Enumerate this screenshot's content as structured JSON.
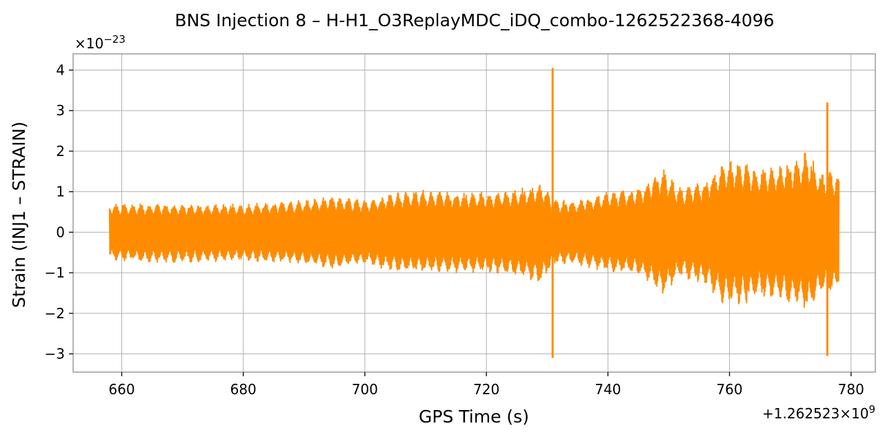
{
  "chart_data": {
    "type": "line",
    "title": "BNS Injection 8 – H-H1_O3ReplayMDC_iDQ_combo-1262522368-4096",
    "xlabel": "GPS Time (s)",
    "ylabel": "Strain (INJ1 – STRAIN)",
    "x_offset_label": "+1.262523×10^9",
    "y_scale_label": "×10^−23",
    "xlim": [
      652,
      784
    ],
    "ylim": [
      -3.45,
      4.4
    ],
    "x_ticks": [
      660,
      680,
      700,
      720,
      740,
      760,
      780
    ],
    "x_tick_labels": [
      "660",
      "680",
      "700",
      "720",
      "740",
      "760",
      "780"
    ],
    "y_ticks": [
      -3,
      -2,
      -1,
      0,
      1,
      2,
      3,
      4
    ],
    "y_tick_labels": [
      "−3",
      "−2",
      "−1",
      "0",
      "1",
      "2",
      "3",
      "4"
    ],
    "grid": true,
    "color": "#ff8c00",
    "series": [
      {
        "x_start": 658.0,
        "x_end": 778.0,
        "envelope": [
          {
            "x": 658,
            "upper": 0.7,
            "lower": -0.7
          },
          {
            "x": 665,
            "upper": 0.72,
            "lower": -0.75
          },
          {
            "x": 670,
            "upper": 0.7,
            "lower": -0.75
          },
          {
            "x": 675,
            "upper": 0.7,
            "lower": -0.72
          },
          {
            "x": 680,
            "upper": 0.7,
            "lower": -0.72
          },
          {
            "x": 685,
            "upper": 0.75,
            "lower": -0.75
          },
          {
            "x": 690,
            "upper": 0.8,
            "lower": -0.8
          },
          {
            "x": 695,
            "upper": 0.9,
            "lower": -0.9
          },
          {
            "x": 700,
            "upper": 0.8,
            "lower": -0.8
          },
          {
            "x": 705,
            "upper": 1.0,
            "lower": -1.0
          },
          {
            "x": 710,
            "upper": 1.05,
            "lower": -1.0
          },
          {
            "x": 715,
            "upper": 1.0,
            "lower": -1.0
          },
          {
            "x": 720,
            "upper": 1.0,
            "lower": -1.0
          },
          {
            "x": 725,
            "upper": 1.05,
            "lower": -1.1
          },
          {
            "x": 729,
            "upper": 1.25,
            "lower": -1.3
          },
          {
            "x": 731,
            "upper": 0.8,
            "lower": -0.8
          },
          {
            "x": 735,
            "upper": 0.8,
            "lower": -0.8
          },
          {
            "x": 740,
            "upper": 1.0,
            "lower": -1.0
          },
          {
            "x": 745,
            "upper": 1.1,
            "lower": -1.05
          },
          {
            "x": 749,
            "upper": 1.6,
            "lower": -1.6
          },
          {
            "x": 752,
            "upper": 1.1,
            "lower": -1.1
          },
          {
            "x": 756,
            "upper": 1.3,
            "lower": -1.3
          },
          {
            "x": 759,
            "upper": 1.75,
            "lower": -1.8
          },
          {
            "x": 762,
            "upper": 1.8,
            "lower": -1.8
          },
          {
            "x": 765,
            "upper": 1.6,
            "lower": -1.6
          },
          {
            "x": 768,
            "upper": 1.65,
            "lower": -1.65
          },
          {
            "x": 771,
            "upper": 1.85,
            "lower": -1.85
          },
          {
            "x": 773,
            "upper": 2.0,
            "lower": -2.0
          },
          {
            "x": 775,
            "upper": 1.5,
            "lower": -1.5
          },
          {
            "x": 777,
            "upper": 1.55,
            "lower": -1.55
          },
          {
            "x": 778,
            "upper": 1.4,
            "lower": -1.4
          }
        ],
        "spikes": [
          {
            "x": 730.9,
            "max": 4.05,
            "min": -3.1
          },
          {
            "x": 776.1,
            "max": 3.2,
            "min": -3.05
          }
        ]
      }
    ]
  }
}
